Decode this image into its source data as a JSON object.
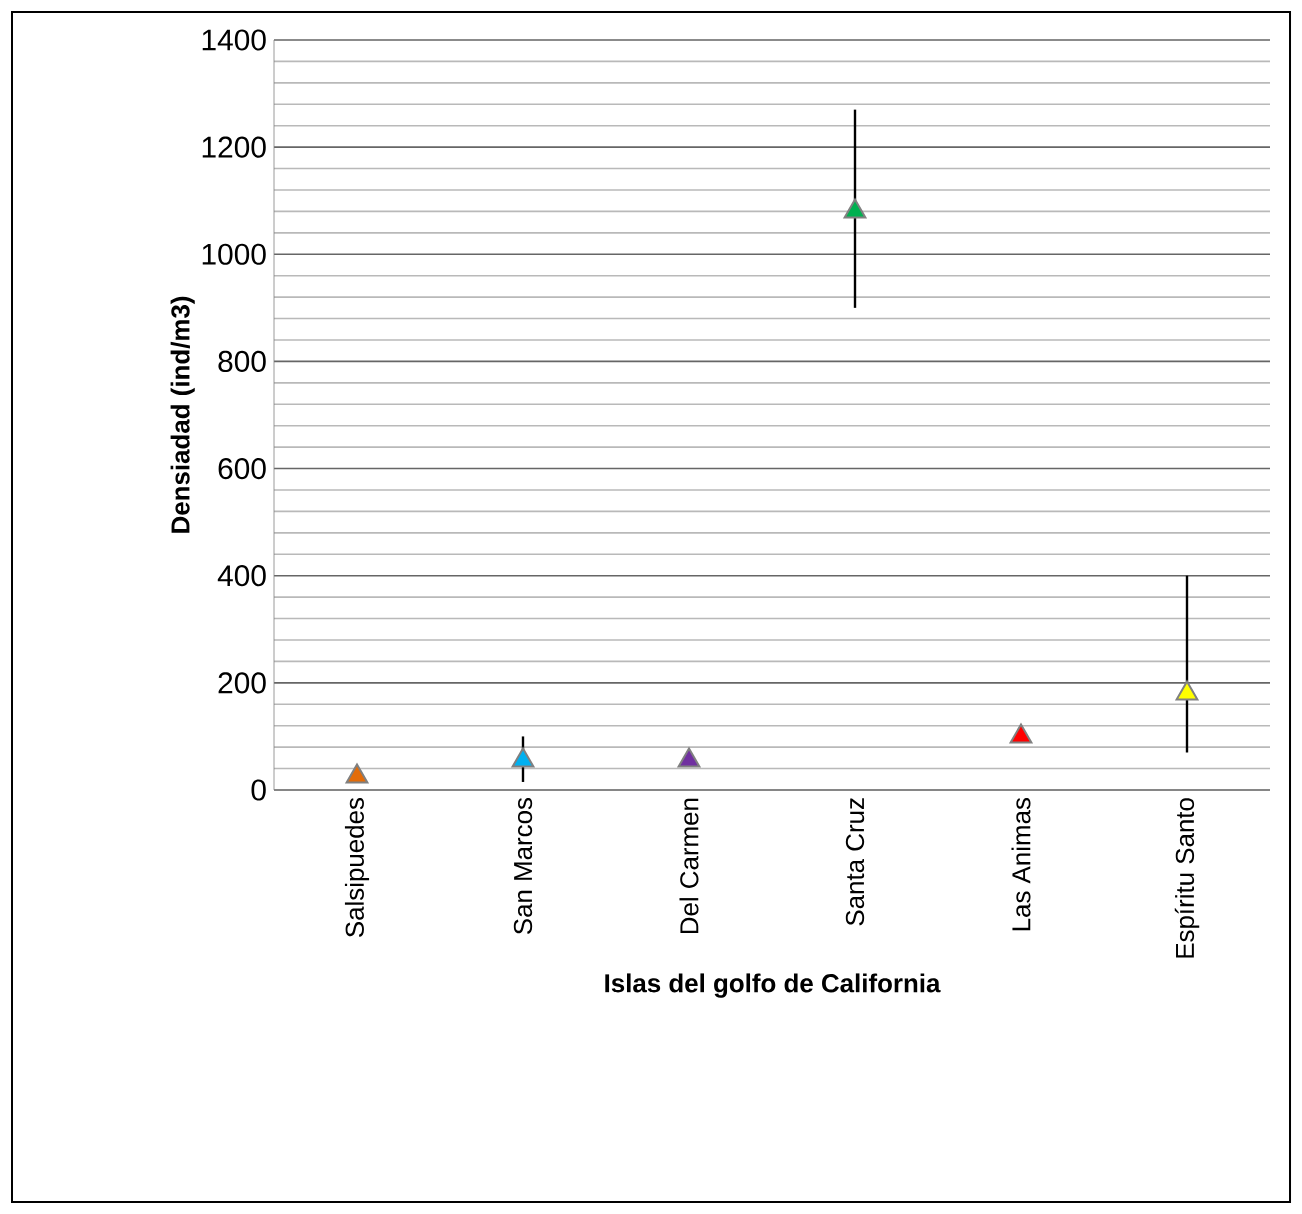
{
  "chart_data": {
    "type": "scatter",
    "xlabel": "Islas del golfo de California",
    "ylabel": "Densiadad (ind/m3)",
    "categories": [
      "Salsipuedes",
      "San Marcos",
      "Del Carmen",
      "Santa Cruz",
      "Las Animas",
      "Espíritu Santo"
    ],
    "values": [
      25,
      55,
      55,
      1080,
      100,
      180
    ],
    "colors": [
      "#e36c09",
      "#00b0f0",
      "#7030a0",
      "#00b050",
      "#ff0000",
      "#ffff00"
    ],
    "errors": [
      null,
      [
        15,
        100
      ],
      null,
      [
        900,
        1270
      ],
      null,
      [
        70,
        400
      ]
    ],
    "ylim": [
      0,
      1400
    ],
    "yticks": [
      0,
      200,
      400,
      600,
      800,
      1000,
      1200,
      1400
    ],
    "grid": "y",
    "marker": "triangle"
  }
}
